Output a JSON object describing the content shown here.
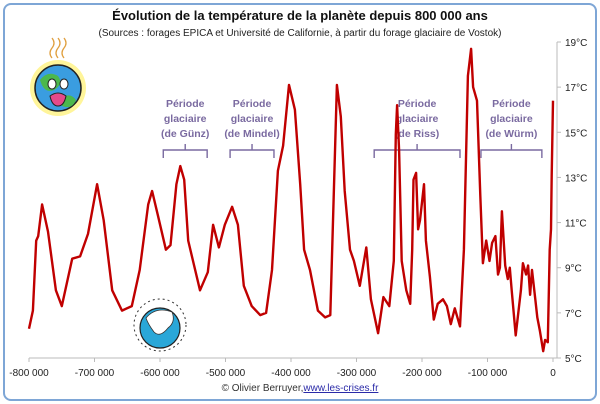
{
  "chart_data": {
    "type": "line",
    "title": "Évolution de la température de la planète depuis 800 000 ans",
    "subtitle": "(Sources : forages EPICA et Université de Californie, à partir du forage glaciaire de Vostok)",
    "xlabel": "",
    "ylabel": "",
    "xlim": [
      -800000,
      0
    ],
    "ylim": [
      5,
      19
    ],
    "grid": false,
    "x_tick_labels": [
      "-800 000",
      "-700 000",
      "-600 000",
      "-500 000",
      "-400 000",
      "-300 000",
      "-200 000",
      "-100 000",
      "0"
    ],
    "x_ticks": [
      -800000,
      -700000,
      -600000,
      -500000,
      -400000,
      -300000,
      -200000,
      -100000,
      0
    ],
    "y_tick_labels": [
      "5°C",
      "7°C",
      "9°C",
      "11°C",
      "13°C",
      "15°C",
      "17°C",
      "19°C"
    ],
    "y_ticks": [
      5,
      7,
      9,
      11,
      13,
      15,
      17,
      19
    ],
    "y_axis_position": "right",
    "series_color": "#C00000",
    "x": [
      -800000,
      -794000,
      -789000,
      -786000,
      -780000,
      -771000,
      -759000,
      -750000,
      -734000,
      -722000,
      -710000,
      -696000,
      -686000,
      -673000,
      -658000,
      -643000,
      -631000,
      -618000,
      -612000,
      -603000,
      -591000,
      -584000,
      -575000,
      -569000,
      -563000,
      -557000,
      -548000,
      -539000,
      -527000,
      -519000,
      -510000,
      -501000,
      -490000,
      -481000,
      -472000,
      -460000,
      -447000,
      -438000,
      -429000,
      -420000,
      -412000,
      -403000,
      -394000,
      -386000,
      -380000,
      -371000,
      -359000,
      -348000,
      -340000,
      -330000,
      -324000,
      -318000,
      -310000,
      -304000,
      -295000,
      -285000,
      -278000,
      -267000,
      -259000,
      -250000,
      -243000,
      -240000,
      -238000,
      -235000,
      -231000,
      -224000,
      -218000,
      -215000,
      -213000,
      -209000,
      -206000,
      -203000,
      -197000,
      -194000,
      -188000,
      -182000,
      -176000,
      -168000,
      -162000,
      -156000,
      -150000,
      -142000,
      -136000,
      -130000,
      -125000,
      -122000,
      -116000,
      -111000,
      -107000,
      -102000,
      -97000,
      -93000,
      -88000,
      -84000,
      -81000,
      -78000,
      -73000,
      -69000,
      -66000,
      -63000,
      -57000,
      -49000,
      -46000,
      -41000,
      -38000,
      -35000,
      -32000,
      -27000,
      -24000,
      -20000,
      -15000,
      -12000,
      -8000,
      -5000,
      -3000,
      -2000,
      -1000,
      0
    ],
    "values": [
      6.3,
      7.1,
      10.2,
      10.4,
      11.8,
      10.6,
      8.0,
      7.3,
      9.4,
      9.5,
      10.5,
      12.7,
      11.1,
      8.0,
      7.1,
      7.3,
      8.9,
      11.8,
      12.4,
      11.3,
      9.8,
      10.0,
      12.7,
      13.5,
      12.9,
      10.2,
      9.1,
      8.0,
      8.8,
      10.9,
      9.9,
      10.9,
      11.7,
      10.9,
      8.2,
      7.3,
      6.9,
      7.0,
      8.9,
      13.3,
      14.4,
      17.1,
      16.0,
      12.7,
      9.8,
      8.9,
      7.1,
      6.8,
      6.9,
      17.1,
      15.7,
      12.4,
      9.8,
      9.3,
      8.2,
      9.9,
      7.6,
      6.1,
      7.7,
      7.3,
      9.3,
      14.9,
      16.2,
      14.2,
      9.3,
      8.0,
      7.4,
      9.8,
      12.9,
      13.2,
      10.7,
      11.1,
      12.7,
      10.2,
      8.6,
      6.7,
      7.4,
      7.6,
      7.3,
      6.5,
      7.2,
      6.4,
      9.8,
      17.5,
      18.7,
      17.0,
      16.4,
      12.2,
      9.2,
      10.2,
      9.3,
      10.1,
      10.4,
      8.7,
      9.0,
      11.5,
      9.1,
      8.5,
      9.0,
      8.0,
      6.0,
      8.0,
      9.2,
      8.7,
      9.1,
      7.8,
      8.9,
      7.6,
      6.8,
      6.2,
      5.3,
      5.8,
      5.7,
      9.8,
      10.7,
      13.1,
      14.6,
      16.4
    ],
    "annotations": [
      {
        "lines": [
          "Période",
          "glaciaire",
          "(de Günz)"
        ],
        "from": -595000,
        "to": -528000
      },
      {
        "lines": [
          "Période",
          "glaciaire",
          "(de Mindel)"
        ],
        "from": -493000,
        "to": -426000
      },
      {
        "lines": [
          "Période",
          "glaciaire",
          "(de Riss)"
        ],
        "from": -273000,
        "to": -142000
      },
      {
        "lines": [
          "Période",
          "glaciaire",
          "(de Würm)"
        ],
        "from": -110000,
        "to": -17000
      }
    ],
    "annotation_color": "#7a6aa0"
  },
  "footer": {
    "credit": "© Olivier Berruyer, ",
    "link": "www.les-crises.fr"
  },
  "icons": [
    "hot-earth-icon",
    "frozen-earth-icon"
  ]
}
